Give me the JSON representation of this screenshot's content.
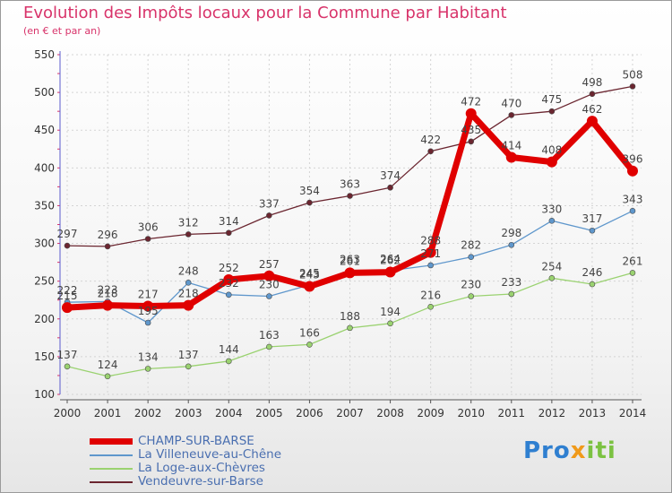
{
  "chart_data": {
    "type": "line",
    "title": "Evolution des Impôts locaux pour la Commune par Habitant",
    "subtitle": "(en € et par an)",
    "x": [
      "2000",
      "2001",
      "2002",
      "2003",
      "2004",
      "2005",
      "2006",
      "2007",
      "2008",
      "2009",
      "2010",
      "2011",
      "2012",
      "2013",
      "2014"
    ],
    "ylim": [
      100,
      550
    ],
    "yticks": [
      100,
      150,
      200,
      250,
      300,
      350,
      400,
      450,
      500,
      550
    ],
    "grid": true,
    "legend_position": "bottom-left",
    "series": [
      {
        "name": "CHAMP-SUR-BARSE",
        "color": "#e00000",
        "values": [
          215,
          218,
          217,
          218,
          252,
          257,
          243,
          261,
          262,
          288,
          472,
          414,
          408,
          462,
          396
        ]
      },
      {
        "name": "La Villeneuve-au-Chêne",
        "color": "#5f97cc",
        "values": [
          222,
          223,
          195,
          248,
          232,
          230,
          245,
          263,
          264,
          271,
          282,
          298,
          330,
          317,
          343
        ]
      },
      {
        "name": "La Loge-aux-Chèvres",
        "color": "#9ad270",
        "values": [
          137,
          124,
          134,
          137,
          144,
          163,
          166,
          188,
          194,
          216,
          230,
          233,
          254,
          246,
          261
        ]
      },
      {
        "name": "Vendeuvre-sur-Barse",
        "color": "#6b2630",
        "values": [
          297,
          296,
          306,
          312,
          314,
          337,
          354,
          363,
          374,
          422,
          435,
          470,
          475,
          498,
          508
        ]
      }
    ],
    "point_labels": [
      {
        "series": 0,
        "labels": [
          "215",
          "218",
          "217",
          "218",
          "252",
          "257",
          "243",
          "261",
          "262",
          "288",
          "472",
          "414",
          "408",
          "462",
          "396"
        ]
      },
      {
        "series": 1,
        "labels": [
          "222",
          "223",
          "195",
          "248",
          "232",
          "230",
          "245",
          "263",
          "264",
          "271",
          "282",
          "298",
          "330",
          "317",
          "343"
        ]
      },
      {
        "series": 2,
        "labels": [
          "137",
          "124",
          "134",
          "137",
          "144",
          "163",
          "166",
          "188",
          "194",
          "216",
          "230",
          "233",
          "254",
          "246",
          "261"
        ]
      },
      {
        "series": 3,
        "labels": [
          "297",
          "296",
          "306",
          "312",
          "314",
          "337",
          "354",
          "363",
          "374",
          "422",
          "435",
          "470",
          "475",
          "498",
          "508"
        ]
      }
    ]
  },
  "brand": {
    "part1": "Pro",
    "part2": "x",
    "part3": "iti"
  }
}
